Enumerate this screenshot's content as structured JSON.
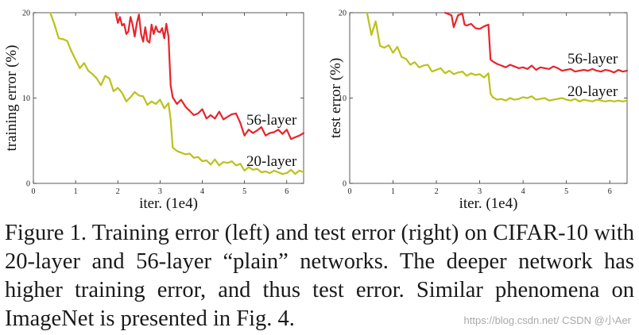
{
  "chart_data": [
    {
      "type": "line",
      "xlabel": "iter. (1e4)",
      "ylabel": "training error (%)",
      "xlim": [
        0,
        6.4
      ],
      "ylim": [
        0,
        20
      ],
      "xticks": [
        "0",
        "1",
        "2",
        "3",
        "4",
        "5",
        "6"
      ],
      "yticks": [
        "0",
        "10",
        "20"
      ],
      "grid": false,
      "series": [
        {
          "name": "56-layer",
          "color": "#e8242b",
          "x": [
            1.95,
            2.0,
            2.05,
            2.1,
            2.15,
            2.2,
            2.25,
            2.3,
            2.35,
            2.4,
            2.45,
            2.5,
            2.55,
            2.6,
            2.65,
            2.7,
            2.75,
            2.8,
            2.85,
            2.9,
            2.95,
            3.0,
            3.05,
            3.1,
            3.15,
            3.2,
            3.25,
            3.3,
            3.4,
            3.5,
            3.6,
            3.7,
            3.8,
            3.9,
            4.0,
            4.1,
            4.2,
            4.3,
            4.4,
            4.5,
            4.6,
            4.7,
            4.8,
            4.9,
            5.0,
            5.1,
            5.2,
            5.3,
            5.4,
            5.5,
            5.6,
            5.7,
            5.8,
            5.9,
            6.0,
            6.1,
            6.2,
            6.3,
            6.4
          ],
          "y": [
            20.0,
            18.8,
            19.5,
            18.5,
            18.7,
            17.5,
            17.8,
            19.5,
            18.6,
            17.2,
            18.8,
            19.8,
            17.5,
            16.6,
            18.3,
            16.7,
            16.5,
            18.6,
            17.5,
            18.4,
            17.8,
            17.7,
            18.2,
            17.0,
            18.7,
            17.2,
            11.5,
            10.1,
            9.3,
            9.8,
            9.0,
            8.5,
            8.0,
            8.2,
            8.7,
            7.6,
            8.0,
            7.6,
            8.4,
            7.5,
            7.8,
            8.1,
            8.2,
            7.1,
            5.6,
            6.3,
            5.9,
            6.2,
            6.6,
            5.6,
            5.9,
            6.0,
            6.3,
            5.8,
            6.3,
            5.2,
            5.4,
            5.6,
            5.9
          ]
        },
        {
          "name": "20-layer",
          "color": "#bcc11a",
          "x": [
            0.4,
            0.5,
            0.6,
            0.7,
            0.8,
            0.9,
            1.0,
            1.1,
            1.2,
            1.3,
            1.4,
            1.5,
            1.6,
            1.7,
            1.8,
            1.9,
            2.0,
            2.1,
            2.2,
            2.3,
            2.4,
            2.5,
            2.6,
            2.7,
            2.8,
            2.9,
            3.0,
            3.1,
            3.2,
            3.25,
            3.3,
            3.4,
            3.5,
            3.6,
            3.7,
            3.8,
            3.9,
            4.0,
            4.1,
            4.2,
            4.3,
            4.4,
            4.5,
            4.6,
            4.7,
            4.8,
            4.9,
            5.0,
            5.1,
            5.2,
            5.3,
            5.4,
            5.5,
            5.6,
            5.7,
            5.8,
            5.9,
            6.0,
            6.1,
            6.2,
            6.3,
            6.4
          ],
          "y": [
            20.0,
            18.6,
            17.0,
            16.9,
            16.7,
            15.5,
            14.5,
            13.5,
            14.1,
            13.2,
            12.8,
            12.3,
            11.5,
            12.6,
            12.3,
            10.8,
            11.2,
            10.6,
            9.6,
            10.1,
            10.7,
            10.3,
            10.2,
            9.2,
            9.6,
            9.3,
            9.8,
            8.8,
            9.4,
            7.5,
            4.2,
            3.8,
            3.6,
            3.4,
            3.5,
            3.0,
            3.1,
            2.6,
            2.7,
            2.2,
            2.8,
            2.1,
            2.5,
            2.4,
            2.6,
            2.1,
            2.3,
            1.5,
            1.9,
            1.6,
            1.7,
            1.3,
            1.4,
            1.2,
            1.5,
            1.3,
            1.1,
            1.2,
            1.6,
            1.1,
            1.5,
            1.3
          ]
        }
      ],
      "annotations": [
        "56-layer",
        "20-layer"
      ]
    },
    {
      "type": "line",
      "xlabel": "iter. (1e4)",
      "ylabel": "test error (%)",
      "xlim": [
        0,
        6.4
      ],
      "ylim": [
        0,
        20
      ],
      "xticks": [
        "0",
        "1",
        "2",
        "3",
        "4",
        "5",
        "6"
      ],
      "yticks": [
        "0",
        "10",
        "20"
      ],
      "grid": false,
      "series": [
        {
          "name": "56-layer",
          "color": "#e8242b",
          "x": [
            2.2,
            2.3,
            2.35,
            2.4,
            2.5,
            2.6,
            2.65,
            2.7,
            2.8,
            2.9,
            3.0,
            3.1,
            3.2,
            3.25,
            3.3,
            3.4,
            3.5,
            3.6,
            3.7,
            3.8,
            3.9,
            4.0,
            4.1,
            4.2,
            4.3,
            4.4,
            4.5,
            4.6,
            4.7,
            4.8,
            4.9,
            5.0,
            5.1,
            5.2,
            5.3,
            5.4,
            5.5,
            5.6,
            5.7,
            5.8,
            5.9,
            6.0,
            6.1,
            6.2,
            6.3,
            6.4
          ],
          "y": [
            20.0,
            19.8,
            19.7,
            18.3,
            19.7,
            19.9,
            18.6,
            18.5,
            18.7,
            18.2,
            18.1,
            18.4,
            18.6,
            14.5,
            14.3,
            14.0,
            13.8,
            13.6,
            13.9,
            13.7,
            13.5,
            13.6,
            13.4,
            13.8,
            13.3,
            13.6,
            13.5,
            13.4,
            13.7,
            13.5,
            13.2,
            13.3,
            13.4,
            13.1,
            13.2,
            13.3,
            13.2,
            13.4,
            13.2,
            13.1,
            13.3,
            13.2,
            13.0,
            13.3,
            13.1,
            13.2
          ]
        },
        {
          "name": "20-layer",
          "color": "#bcc11a",
          "x": [
            0.4,
            0.5,
            0.6,
            0.7,
            0.8,
            0.9,
            1.0,
            1.1,
            1.2,
            1.3,
            1.4,
            1.5,
            1.6,
            1.7,
            1.8,
            1.9,
            2.0,
            2.1,
            2.2,
            2.3,
            2.4,
            2.5,
            2.6,
            2.7,
            2.8,
            2.9,
            3.0,
            3.1,
            3.2,
            3.25,
            3.3,
            3.4,
            3.5,
            3.6,
            3.7,
            3.8,
            3.9,
            4.0,
            4.1,
            4.2,
            4.3,
            4.4,
            4.5,
            4.6,
            4.7,
            4.8,
            4.9,
            5.0,
            5.1,
            5.2,
            5.3,
            5.4,
            5.5,
            5.6,
            5.7,
            5.8,
            5.9,
            6.0,
            6.1,
            6.2,
            6.3,
            6.4
          ],
          "y": [
            20.0,
            17.4,
            19.0,
            16.1,
            15.9,
            16.2,
            15.3,
            16.0,
            14.8,
            14.6,
            13.9,
            14.2,
            13.6,
            13.8,
            13.9,
            13.1,
            13.3,
            13.5,
            12.9,
            13.2,
            12.8,
            13.0,
            13.1,
            12.6,
            12.9,
            12.7,
            12.8,
            12.4,
            12.9,
            10.5,
            10.1,
            9.8,
            9.9,
            9.7,
            10.0,
            9.8,
            9.9,
            10.1,
            10.0,
            10.2,
            9.8,
            9.9,
            10.0,
            9.7,
            9.8,
            9.9,
            10.0,
            9.8,
            9.7,
            9.9,
            9.6,
            9.8,
            9.7,
            9.6,
            9.8,
            9.7,
            9.6,
            9.7,
            9.6,
            9.7,
            9.6,
            9.7
          ]
        }
      ],
      "annotations": [
        "56-layer",
        "20-layer"
      ]
    }
  ],
  "caption": "Figure 1. Training error (left) and test error (right) on CIFAR-10 with 20-layer and 56-layer “plain” networks. The deeper network has higher training error, and thus test error. Similar phenomena on ImageNet is presented in Fig. 4.",
  "watermark": "https://blog.csdn.net/ CSDN @小Aer"
}
